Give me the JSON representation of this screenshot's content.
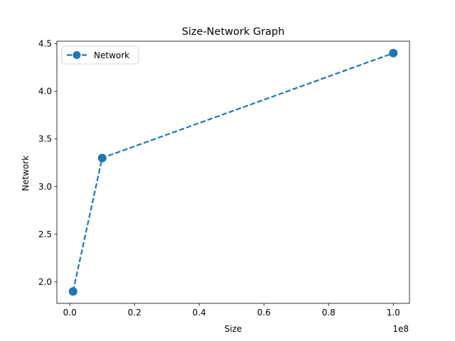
{
  "chart_data": {
    "type": "line",
    "title": "Size-Network Graph",
    "xlabel": "Size",
    "ylabel": "Network",
    "x_offset_label": "1e8",
    "xlim": [
      -4000000,
      105000000
    ],
    "ylim": [
      1.775,
      4.525
    ],
    "x_ticks": [
      0,
      20000000,
      40000000,
      60000000,
      80000000,
      100000000
    ],
    "x_tick_labels": [
      "0.0",
      "0.2",
      "0.4",
      "0.6",
      "0.8",
      "1.0"
    ],
    "y_ticks": [
      2.0,
      2.5,
      3.0,
      3.5,
      4.0,
      4.5
    ],
    "y_tick_labels": [
      "2.0",
      "2.5",
      "3.0",
      "3.5",
      "4.0",
      "4.5"
    ],
    "grid": false,
    "legend_position": "upper-left",
    "series": [
      {
        "name": "Network",
        "color": "#1f77b4",
        "line_style": "dashed",
        "marker": "circle",
        "x": [
          1000000,
          10000000,
          100000000
        ],
        "y": [
          1.9,
          3.3,
          4.4
        ]
      }
    ]
  }
}
